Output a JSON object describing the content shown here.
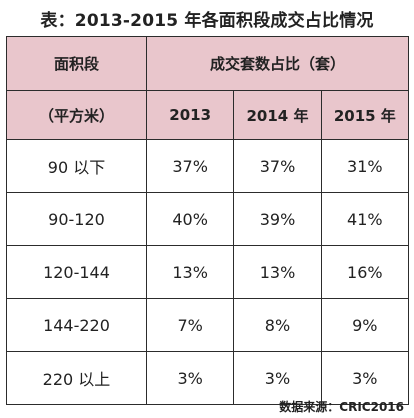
{
  "title": "表：2013-2015 年各面积段成交占比情况",
  "header": {
    "area_col_label_line1": "面积段",
    "area_col_label_line2": "（平方米）",
    "group_label": "成交套数占比（套）",
    "years": [
      "2013",
      "2014 年",
      "2015 年"
    ]
  },
  "rows": [
    {
      "range": "90 以下",
      "values": [
        "37%",
        "37%",
        "31%"
      ]
    },
    {
      "range": "90-120",
      "values": [
        "40%",
        "39%",
        "41%"
      ]
    },
    {
      "range": "120-144",
      "values": [
        "13%",
        "13%",
        "16%"
      ]
    },
    {
      "range": "144-220",
      "values": [
        "7%",
        "8%",
        "9%"
      ]
    },
    {
      "range": "220 以上",
      "values": [
        "3%",
        "3%",
        "3%"
      ]
    }
  ],
  "footer": "数据来源：CRIC2016",
  "colors": {
    "header_bg": "#e9c6cc",
    "border": "#2c2c2c"
  }
}
